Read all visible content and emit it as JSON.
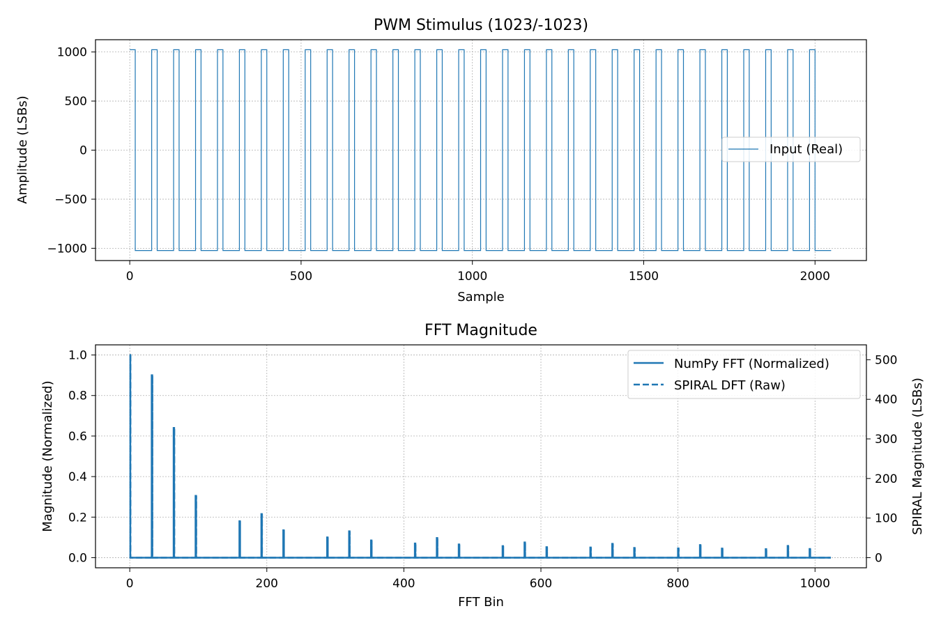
{
  "colors": {
    "series": "#1f77b4",
    "grid": "#b0b0b0",
    "axis": "#000000"
  },
  "chart_data": [
    {
      "type": "line",
      "title": "PWM Stimulus (1023/-1023)",
      "xlabel": "Sample",
      "ylabel": "Amplitude (LSBs)",
      "xlim": [
        -100,
        2150
      ],
      "ylim": [
        -1125,
        1125
      ],
      "xticks": [
        0,
        500,
        1000,
        1500,
        2000
      ],
      "yticks": [
        1000,
        500,
        0,
        -500,
        -1000
      ],
      "ytick_labels": [
        "1000",
        "500",
        "0",
        "−500",
        "−1000"
      ],
      "grid": true,
      "legend_position": "center-right",
      "waveform": {
        "high": 1023,
        "low": -1023,
        "period": 64,
        "high_width": 16,
        "start": 0,
        "end": 2047
      },
      "series": [
        {
          "name": "Input (Real)",
          "style": "solid-thin"
        }
      ]
    },
    {
      "type": "line",
      "title": "FFT Magnitude",
      "xlabel": "FFT Bin",
      "ylabel": "Magnitude (Normalized)",
      "ylabel_right": "SPIRAL Magnitude (LSBs)",
      "xlim": [
        -50,
        1075
      ],
      "ylim": [
        -0.05,
        1.05
      ],
      "ylim_right": [
        -25.6,
        537.6
      ],
      "xticks": [
        0,
        200,
        400,
        600,
        800,
        1000
      ],
      "yticks": [
        "0.0",
        "0.2",
        "0.4",
        "0.6",
        "0.8",
        "1.0"
      ],
      "yticks_right": [
        0,
        100,
        200,
        300,
        400,
        500
      ],
      "grid": true,
      "legend_position": "top-right",
      "x_end": 1023,
      "peaks": {
        "bins": [
          0,
          32,
          64,
          96,
          160,
          192,
          224,
          288,
          320,
          352,
          416,
          448,
          480,
          544,
          576,
          608,
          672,
          704,
          736,
          800,
          832,
          864,
          928,
          960,
          992
        ],
        "values": [
          1.0,
          0.9,
          0.64,
          0.305,
          0.18,
          0.215,
          0.135,
          0.1,
          0.13,
          0.085,
          0.07,
          0.097,
          0.065,
          0.057,
          0.075,
          0.052,
          0.05,
          0.068,
          0.048,
          0.046,
          0.062,
          0.045,
          0.042,
          0.058,
          0.043
        ]
      },
      "series": [
        {
          "name": "NumPy FFT (Normalized)",
          "style": "solid"
        },
        {
          "name": "SPIRAL DFT (Raw)",
          "style": "dashed"
        }
      ]
    }
  ]
}
